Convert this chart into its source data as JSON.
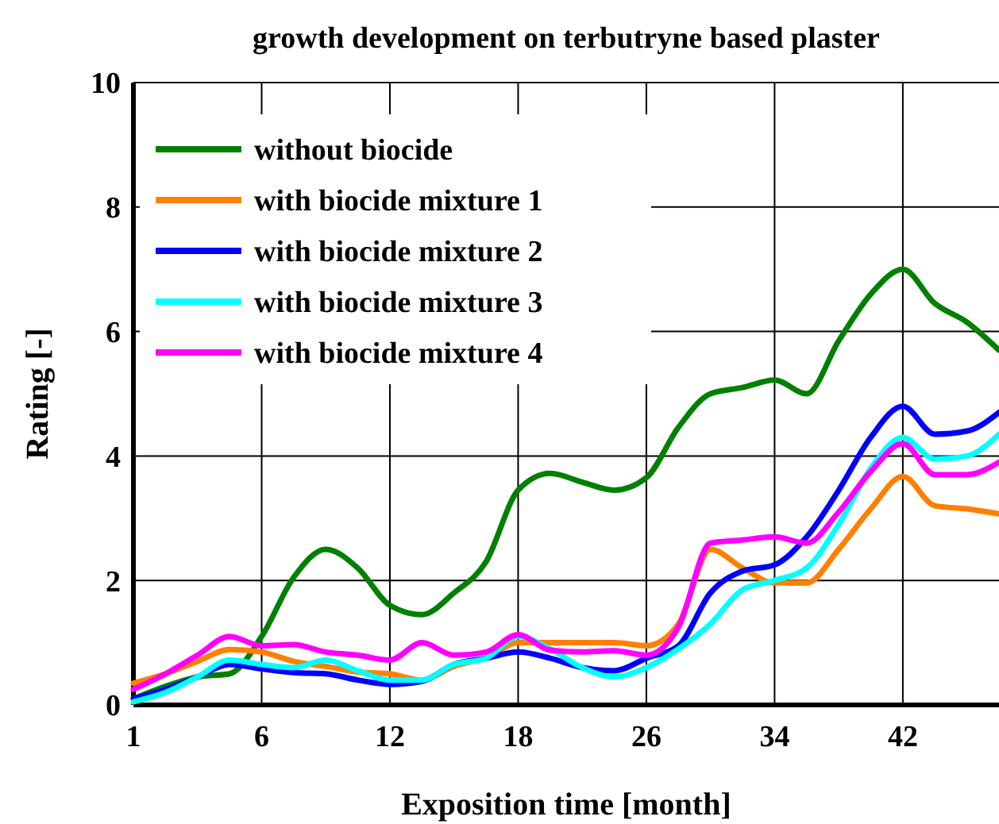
{
  "chart_data": {
    "type": "line",
    "title": "growth development on terbutryne based plaster",
    "xlabel": "Exposition time [month]",
    "ylabel": "Rating [-]",
    "categories": [
      "1",
      null,
      null,
      null,
      "6",
      null,
      null,
      null,
      "12",
      null,
      null,
      null,
      "18",
      null,
      null,
      null,
      "26",
      null,
      null,
      null,
      "34",
      null,
      null,
      null,
      "42",
      null,
      null,
      null
    ],
    "ylim": [
      0,
      10
    ],
    "yticks": [
      0,
      2,
      4,
      6,
      8,
      10
    ],
    "grid": true,
    "legend": "top left",
    "marker": "none",
    "line_style": "solid",
    "series": [
      {
        "name": "without biocide",
        "color": "#008000",
        "values": [
          0.1,
          0.3,
          0.45,
          0.5,
          1.1,
          2.05,
          2.5,
          2.2,
          1.6,
          1.45,
          1.8,
          2.3,
          3.45,
          3.72,
          3.58,
          3.45,
          3.65,
          4.46,
          5.0,
          5.1,
          5.22,
          5.0,
          5.85,
          6.6,
          7.0,
          6.45,
          6.15,
          5.7
        ]
      },
      {
        "name": "with biocide mixture 1",
        "color": "#ff8000",
        "values": [
          0.35,
          0.5,
          0.7,
          0.89,
          0.85,
          0.7,
          0.62,
          0.53,
          0.5,
          0.4,
          0.62,
          0.76,
          1.0,
          1.0,
          1.0,
          1.0,
          0.95,
          1.3,
          2.5,
          2.2,
          1.96,
          1.96,
          2.5,
          3.15,
          3.67,
          3.2,
          3.15,
          3.07
        ]
      },
      {
        "name": "with biocide mixture 2",
        "color": "#0000ff",
        "values": [
          0.1,
          0.25,
          0.45,
          0.65,
          0.58,
          0.52,
          0.5,
          0.4,
          0.33,
          0.38,
          0.65,
          0.75,
          0.85,
          0.75,
          0.6,
          0.55,
          0.75,
          0.95,
          1.8,
          2.15,
          2.25,
          2.7,
          3.45,
          4.3,
          4.8,
          4.35,
          4.4,
          4.7
        ]
      },
      {
        "name": "with biocide mixture 3",
        "color": "#00ffff",
        "values": [
          0.05,
          0.2,
          0.45,
          0.72,
          0.65,
          0.6,
          0.72,
          0.55,
          0.4,
          0.4,
          0.65,
          0.75,
          1.1,
          0.9,
          0.6,
          0.45,
          0.6,
          0.9,
          1.3,
          1.85,
          2.0,
          2.2,
          2.9,
          3.8,
          4.3,
          3.95,
          4.0,
          4.35
        ]
      },
      {
        "name": "with biocide mixture 4",
        "color": "#ff00ff",
        "values": [
          0.25,
          0.5,
          0.8,
          1.1,
          0.95,
          0.97,
          0.85,
          0.8,
          0.72,
          1.0,
          0.8,
          0.85,
          1.13,
          0.88,
          0.85,
          0.87,
          0.8,
          1.25,
          2.6,
          2.65,
          2.7,
          2.6,
          3.1,
          3.75,
          4.2,
          3.7,
          3.7,
          3.9
        ]
      }
    ]
  }
}
